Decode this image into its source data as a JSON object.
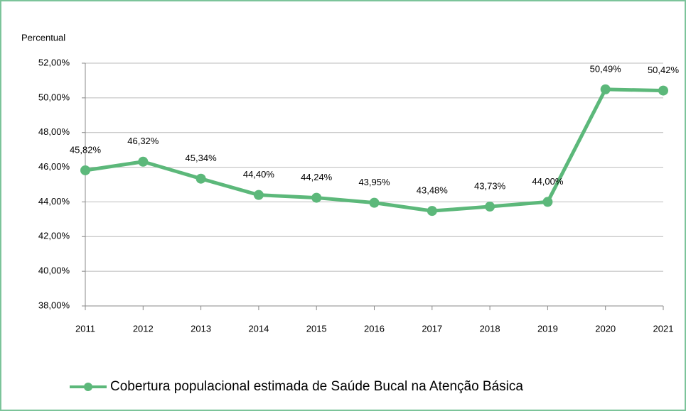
{
  "chart_data": {
    "type": "line",
    "y_axis_label": "Percentual",
    "categories": [
      "2011",
      "2012",
      "2013",
      "2014",
      "2015",
      "2016",
      "2017",
      "2018",
      "2019",
      "2020",
      "2021"
    ],
    "series": [
      {
        "name": "Cobertura populacional estimada de Saúde Bucal na Atenção Básica",
        "color": "#5cb87a",
        "values": [
          45.82,
          46.32,
          45.34,
          44.4,
          44.24,
          43.95,
          43.48,
          43.73,
          44.0,
          50.49,
          50.42
        ],
        "value_labels": [
          "45,82%",
          "46,32%",
          "45,34%",
          "44,40%",
          "44,24%",
          "43,95%",
          "43,48%",
          "43,73%",
          "44,00%",
          "50,49%",
          "50,42%"
        ]
      }
    ],
    "ylim": [
      38,
      52
    ],
    "yticks": [
      {
        "value": 38,
        "label": "38,00%"
      },
      {
        "value": 40,
        "label": "40,00%"
      },
      {
        "value": 42,
        "label": "42,00%"
      },
      {
        "value": 44,
        "label": "44,00%"
      },
      {
        "value": 46,
        "label": "46,00%"
      },
      {
        "value": 48,
        "label": "48,00%"
      },
      {
        "value": 50,
        "label": "50,00%"
      },
      {
        "value": 52,
        "label": "52,00%"
      }
    ],
    "grid": true,
    "legend": "bottom"
  }
}
